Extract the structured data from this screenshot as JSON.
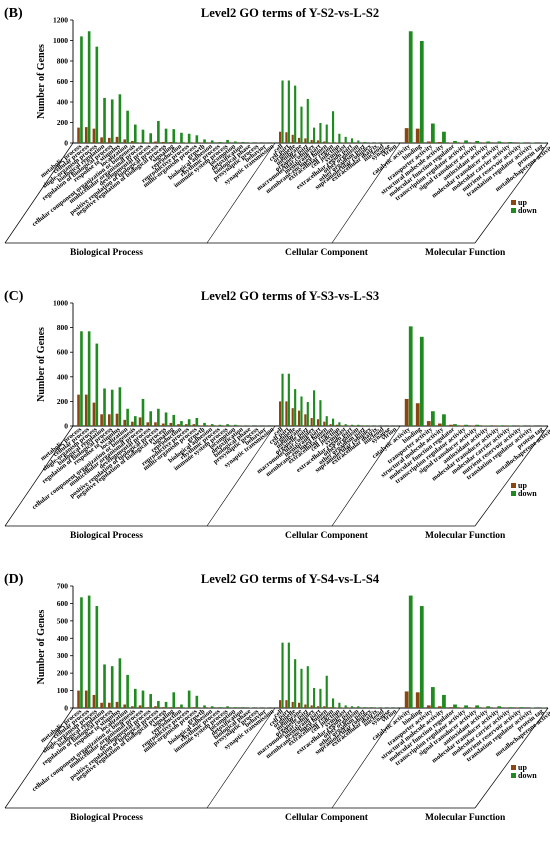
{
  "colors": {
    "up": "#8B4513",
    "down": "#1F8A1F",
    "axis": "#555555",
    "grid": "#cccccc"
  },
  "terms": {
    "bp": [
      "metabolic process",
      "cellular process",
      "single-organism process",
      "biological regulation",
      "regulation of biological process",
      "response to stimulus",
      "localization",
      "cellular component organization or biogenesis",
      "multicellular organismal process",
      "developmental process",
      "positive regulation of biological process",
      "negative regulation of biological process",
      "signaling",
      "reproduction",
      "reproductive process",
      "multi-organism process",
      "growth",
      "biological adhesion",
      "rhythmic process",
      "immune system process",
      "locomotion",
      "detoxification",
      "biological phase",
      "presynaptic process",
      "behavior",
      "synaptic transmission"
    ],
    "cc": [
      "cell",
      "cell part",
      "organelle",
      "membrane",
      "organelle part",
      "macromolecular complex",
      "membrane part",
      "membrane-enclosed lumen",
      "extracellular region",
      "cell junction",
      "symplast",
      "extracellular region part",
      "other organism",
      "other organism part",
      "supramolecular complex",
      "extracellular matrix",
      "nucleoid",
      "synapse",
      "virion"
    ],
    "mf": [
      "catalytic activity",
      "binding",
      "transporter activity",
      "structural molecule activity",
      "molecular function regulator",
      "transcription regulator activity",
      "signal transducer activity",
      "antioxidant activity",
      "molecular transducer activity",
      "molecular carrier activity",
      "nutrient reservoir activity",
      "translation regulator activity",
      "protein tag",
      "metallochaperone activity"
    ]
  },
  "chart_data": [
    {
      "type": "bar",
      "panel": "(B)",
      "title": "Level2 GO terms of Y-S2-vs-L-S2",
      "ylabel": "Number of Genes",
      "ylim": [
        0,
        1200
      ],
      "yticks": [
        0,
        200,
        400,
        600,
        800,
        1000,
        1200
      ],
      "legend": [
        "up",
        "down"
      ],
      "groups": [
        {
          "name": "Biological Process",
          "n": 26,
          "up": [
            150,
            155,
            140,
            55,
            50,
            60,
            35,
            20,
            5,
            5,
            15,
            10,
            10,
            5,
            5,
            5,
            3,
            2,
            1,
            2,
            1,
            1,
            0,
            0,
            0,
            0
          ],
          "down": [
            1040,
            1090,
            940,
            440,
            425,
            475,
            315,
            180,
            130,
            95,
            215,
            140,
            135,
            100,
            90,
            75,
            35,
            25,
            10,
            30,
            15,
            10,
            5,
            3,
            2,
            2
          ]
        },
        {
          "name": "Cellular Component",
          "n": 19,
          "up": [
            110,
            105,
            80,
            50,
            45,
            30,
            25,
            15,
            5,
            5,
            3,
            2,
            1,
            1,
            1,
            0,
            0,
            0,
            0
          ],
          "down": [
            610,
            610,
            560,
            355,
            430,
            150,
            195,
            180,
            310,
            90,
            60,
            45,
            25,
            10,
            5,
            5,
            3,
            2,
            2
          ]
        },
        {
          "name": "Molecular Function",
          "n": 14,
          "up": [
            145,
            140,
            15,
            10,
            5,
            5,
            3,
            2,
            1,
            1,
            1,
            0,
            0,
            0
          ],
          "down": [
            1090,
            995,
            190,
            110,
            20,
            25,
            20,
            15,
            15,
            10,
            5,
            5,
            3,
            2
          ]
        }
      ]
    },
    {
      "type": "bar",
      "panel": "(C)",
      "title": "Level2 GO terms of Y-S3-vs-L-S3",
      "ylabel": "Number of Genes",
      "ylim": [
        0,
        1000
      ],
      "yticks": [
        0,
        200,
        400,
        600,
        800,
        1000
      ],
      "legend": [
        "up",
        "down"
      ],
      "groups": [
        {
          "name": "Biological Process",
          "n": 26,
          "up": [
            255,
            255,
            190,
            95,
            95,
            100,
            50,
            35,
            70,
            30,
            30,
            20,
            25,
            15,
            15,
            15,
            5,
            5,
            3,
            3,
            2,
            2,
            1,
            0,
            0,
            0
          ],
          "down": [
            770,
            770,
            670,
            305,
            295,
            315,
            140,
            80,
            220,
            120,
            140,
            110,
            90,
            40,
            55,
            65,
            25,
            15,
            10,
            15,
            10,
            5,
            3,
            2,
            2,
            1
          ]
        },
        {
          "name": "Cellular Component",
          "n": 19,
          "up": [
            200,
            200,
            145,
            125,
            95,
            65,
            55,
            35,
            15,
            10,
            5,
            3,
            2,
            1,
            1,
            1,
            0,
            0,
            0
          ],
          "down": [
            425,
            425,
            300,
            240,
            195,
            290,
            210,
            80,
            60,
            30,
            15,
            10,
            10,
            5,
            5,
            3,
            2,
            2,
            1
          ]
        },
        {
          "name": "Molecular Function",
          "n": 14,
          "up": [
            220,
            185,
            40,
            20,
            10,
            5,
            5,
            3,
            2,
            2,
            1,
            1,
            0,
            0
          ],
          "down": [
            810,
            725,
            120,
            95,
            15,
            10,
            10,
            5,
            5,
            5,
            3,
            2,
            2,
            1
          ]
        }
      ]
    },
    {
      "type": "bar",
      "panel": "(D)",
      "title": "Level2 GO terms of Y-S4-vs-L-S4",
      "ylabel": "Number of Genes",
      "ylim": [
        0,
        700
      ],
      "yticks": [
        0,
        100,
        200,
        300,
        400,
        500,
        600,
        700
      ],
      "legend": [
        "up",
        "down"
      ],
      "groups": [
        {
          "name": "Biological Process",
          "n": 26,
          "up": [
            100,
            100,
            75,
            30,
            30,
            35,
            20,
            10,
            15,
            5,
            10,
            5,
            5,
            5,
            3,
            5,
            2,
            2,
            1,
            1,
            1,
            0,
            0,
            0,
            0,
            0
          ],
          "down": [
            635,
            645,
            585,
            250,
            240,
            285,
            190,
            110,
            100,
            80,
            40,
            35,
            90,
            20,
            100,
            70,
            15,
            10,
            5,
            10,
            5,
            5,
            3,
            2,
            2,
            1
          ]
        },
        {
          "name": "Cellular Component",
          "n": 19,
          "up": [
            45,
            45,
            35,
            30,
            20,
            15,
            10,
            10,
            5,
            3,
            3,
            2,
            1,
            1,
            1,
            0,
            0,
            0,
            0
          ],
          "down": [
            375,
            375,
            280,
            225,
            240,
            115,
            110,
            185,
            55,
            30,
            15,
            10,
            10,
            5,
            5,
            3,
            3,
            2,
            2
          ]
        },
        {
          "name": "Molecular Function",
          "n": 14,
          "up": [
            95,
            90,
            15,
            10,
            5,
            3,
            3,
            2,
            2,
            1,
            1,
            0,
            0,
            0
          ],
          "down": [
            645,
            585,
            120,
            75,
            20,
            15,
            15,
            10,
            10,
            5,
            5,
            3,
            2,
            2
          ]
        }
      ]
    }
  ]
}
